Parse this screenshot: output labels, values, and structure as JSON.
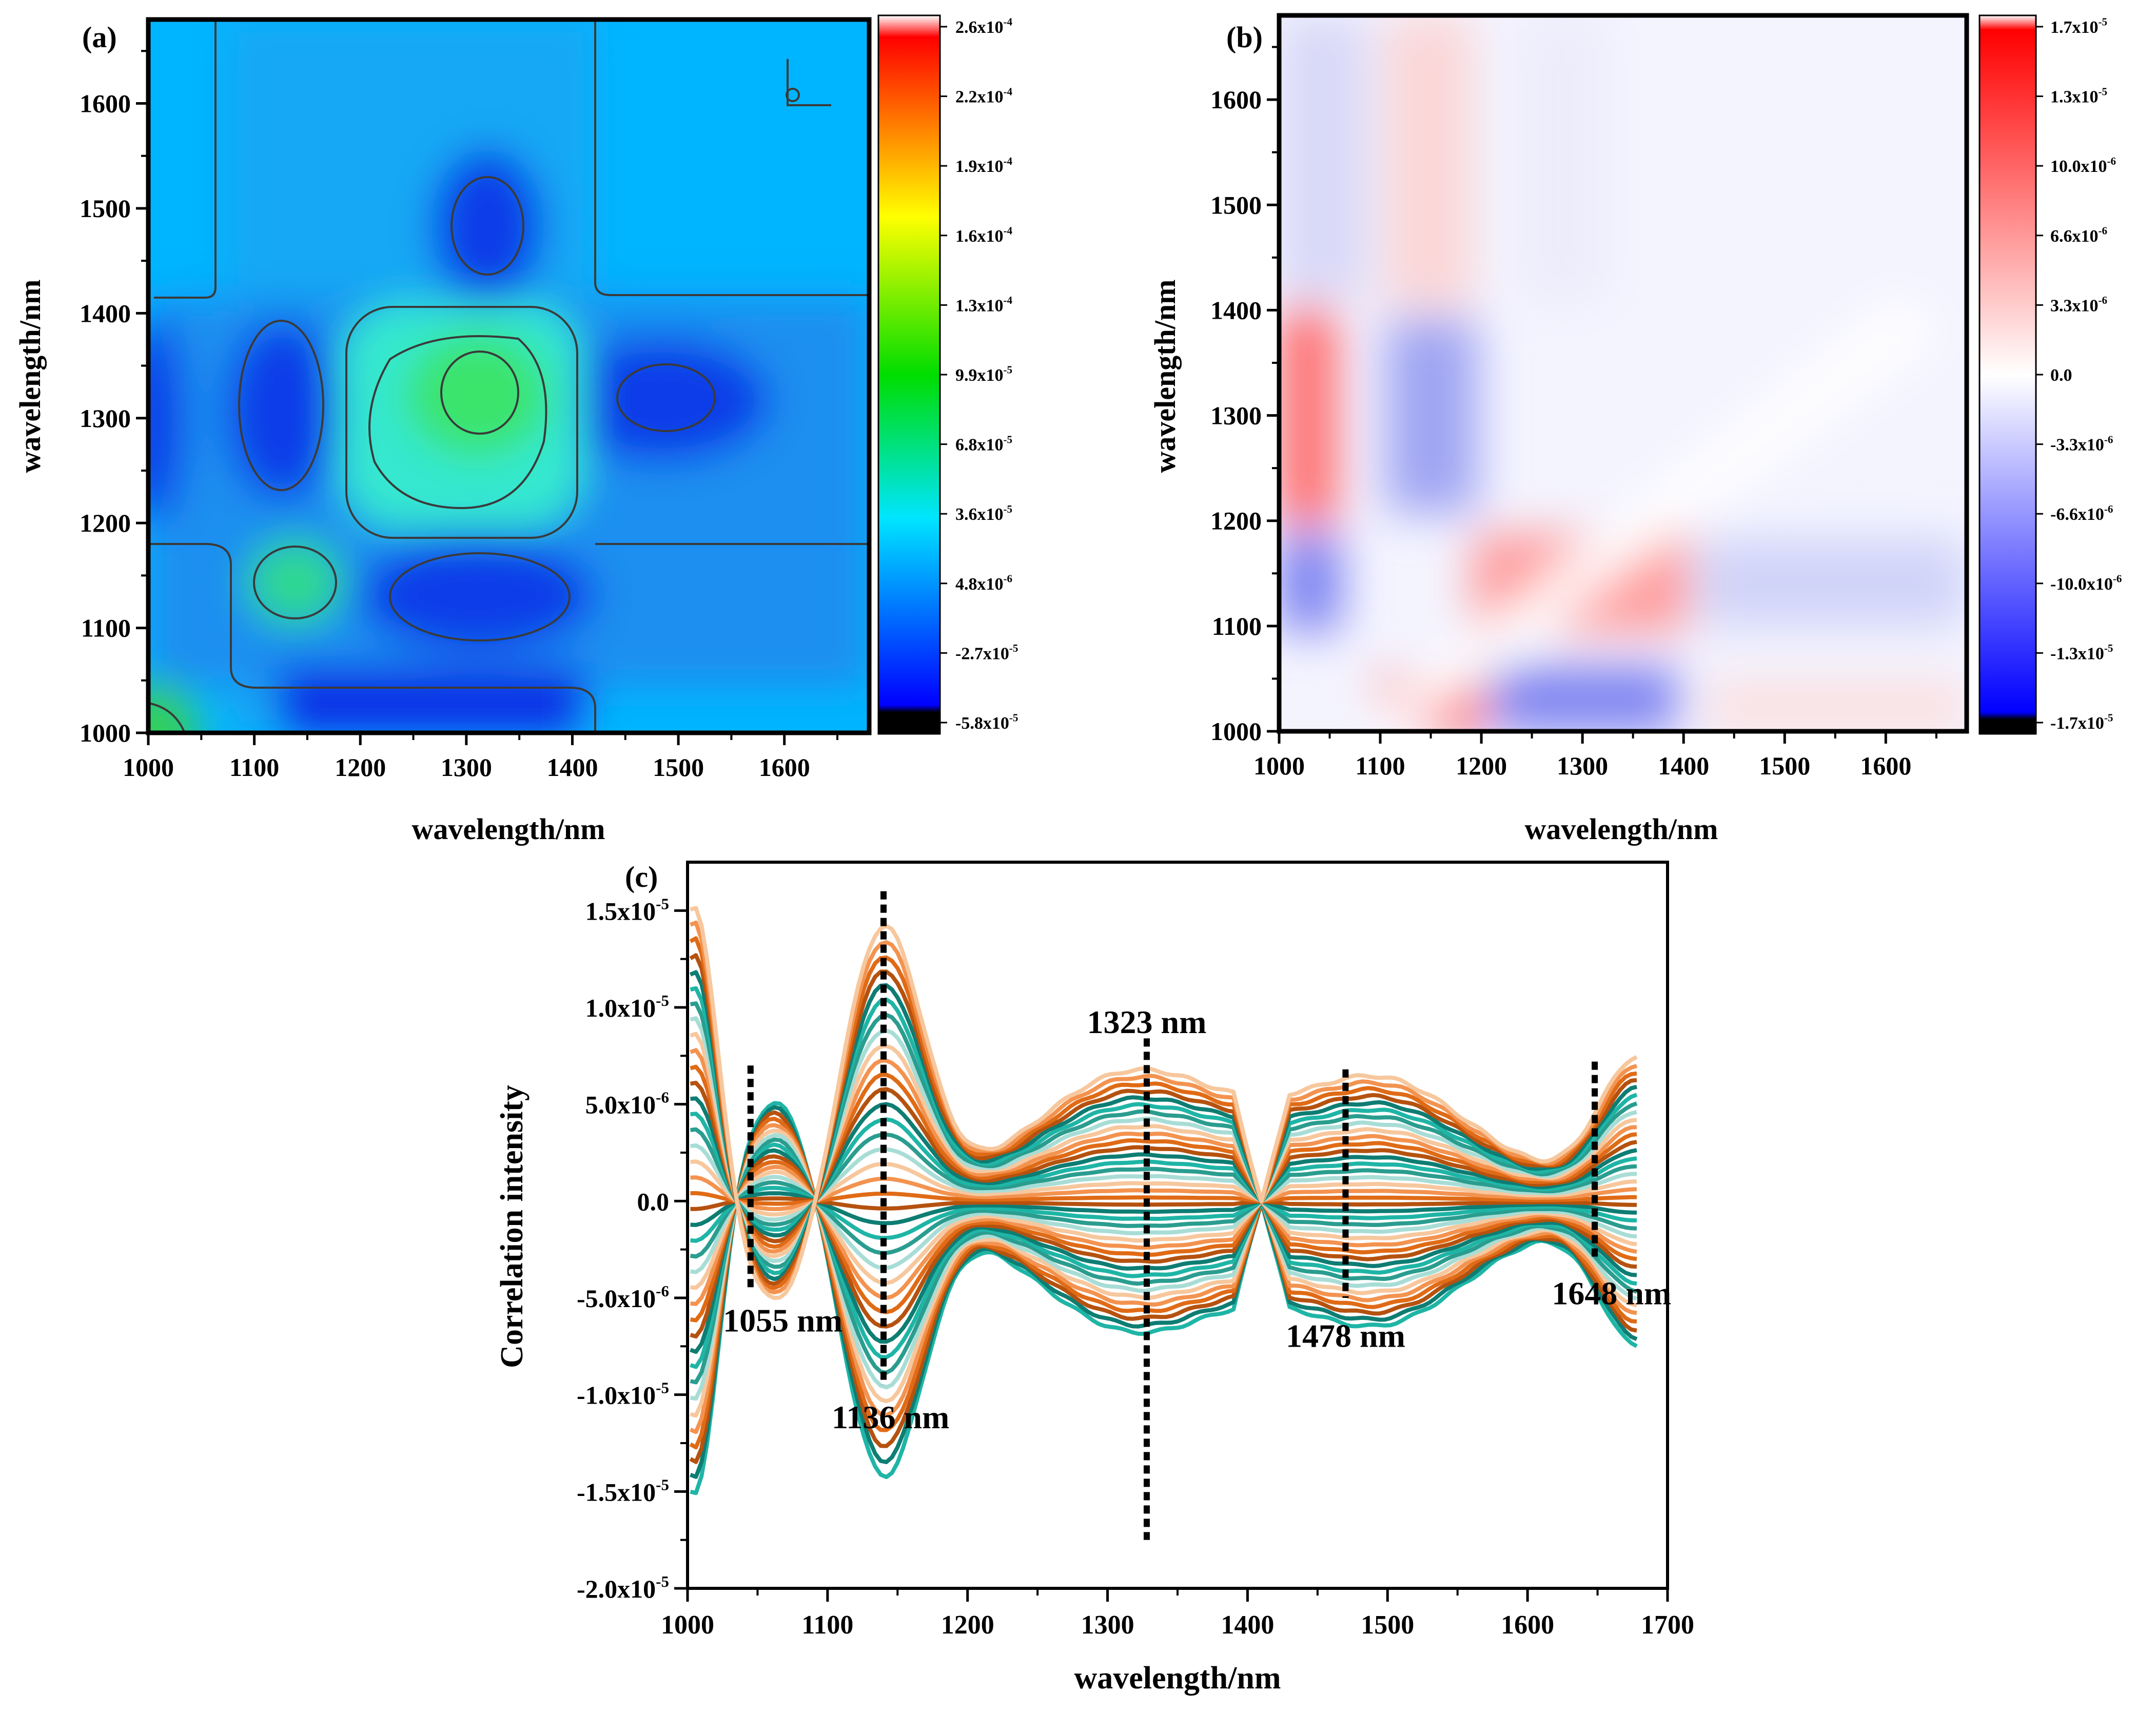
{
  "chart_data": [
    {
      "panel": "(a)",
      "type": "heatmap",
      "xlabel": "wavelength/nm",
      "ylabel": "wavelength/nm",
      "xlim": [
        1000,
        1680
      ],
      "ylim": [
        1000,
        1680
      ],
      "xticks": [
        "1000",
        "1100",
        "1200",
        "1300",
        "1400",
        "1500",
        "1600"
      ],
      "yticks": [
        "1000",
        "1100",
        "1200",
        "1300",
        "1400",
        "1500",
        "1600"
      ],
      "colorbar": {
        "labels": [
          {
            "mantissa": "2.6x10",
            "exp": "-4"
          },
          {
            "mantissa": "2.2x10",
            "exp": "-4"
          },
          {
            "mantissa": "1.9x10",
            "exp": "-4"
          },
          {
            "mantissa": "1.6x10",
            "exp": "-4"
          },
          {
            "mantissa": "1.3x10",
            "exp": "-4"
          },
          {
            "mantissa": "9.9x10",
            "exp": "-5"
          },
          {
            "mantissa": "6.8x10",
            "exp": "-5"
          },
          {
            "mantissa": "3.6x10",
            "exp": "-5"
          },
          {
            "mantissa": "4.8x10",
            "exp": "-6"
          },
          {
            "mantissa": "-2.7x10",
            "exp": "-5"
          },
          {
            "mantissa": "-5.8x10",
            "exp": "-5"
          }
        ],
        "colors": [
          "#ffffff",
          "#ff0000",
          "#ffff00",
          "#00dd00",
          "#00e5ff",
          "#0040ff",
          "#000000"
        ]
      },
      "features": [
        {
          "x": 1320,
          "y": 1320,
          "sign": "positive",
          "level": "high"
        },
        {
          "x": 1135,
          "y": 1135,
          "sign": "positive",
          "level": "medium"
        },
        {
          "x": 1010,
          "y": 1010,
          "sign": "positive",
          "level": "high"
        },
        {
          "x": 1320,
          "y": 1135,
          "sign": "negative"
        },
        {
          "x": 1135,
          "y": 1320,
          "sign": "negative"
        },
        {
          "x": 1480,
          "y": 1320,
          "sign": "negative"
        },
        {
          "x": 1330,
          "y": 1480,
          "sign": "negative"
        },
        {
          "x": 1320,
          "y": 1010,
          "sign": "negative"
        }
      ]
    },
    {
      "panel": "(b)",
      "type": "heatmap",
      "xlabel": "wavelength/nm",
      "ylabel": "wavelength/nm",
      "xlim": [
        1000,
        1680
      ],
      "ylim": [
        1000,
        1680
      ],
      "xticks": [
        "1000",
        "1100",
        "1200",
        "1300",
        "1400",
        "1500",
        "1600"
      ],
      "yticks": [
        "1000",
        "1100",
        "1200",
        "1300",
        "1400",
        "1500",
        "1600"
      ],
      "colorbar": {
        "labels": [
          {
            "mantissa": "1.7x10",
            "exp": "-5"
          },
          {
            "mantissa": "1.3x10",
            "exp": "-5"
          },
          {
            "mantissa": "10.0x10",
            "exp": "-6"
          },
          {
            "mantissa": "6.6x10",
            "exp": "-6"
          },
          {
            "mantissa": "3.3x10",
            "exp": "-6"
          },
          {
            "mantissa": "0.0",
            "exp": ""
          },
          {
            "mantissa": "-3.3x10",
            "exp": "-6"
          },
          {
            "mantissa": "-6.6x10",
            "exp": "-6"
          },
          {
            "mantissa": "-10.0x10",
            "exp": "-6"
          },
          {
            "mantissa": "-1.3x10",
            "exp": "-5"
          },
          {
            "mantissa": "-1.7x10",
            "exp": "-5"
          }
        ],
        "colors": [
          "#ffffff",
          "#ff0000",
          "#ffffff",
          "#0000ff",
          "#000000"
        ]
      },
      "features": [
        {
          "x": 1010,
          "y": 1320,
          "sign": "positive"
        },
        {
          "x": 1150,
          "y": 1010,
          "sign": "positive"
        },
        {
          "x": 1300,
          "y": 1140,
          "sign": "positive"
        },
        {
          "x": 1140,
          "y": 1300,
          "sign": "negative"
        },
        {
          "x": 1010,
          "y": 1140,
          "sign": "negative"
        },
        {
          "x": 1320,
          "y": 1010,
          "sign": "negative"
        },
        {
          "x": 1480,
          "y": 1140,
          "sign": "negative"
        }
      ]
    },
    {
      "panel": "(c)",
      "type": "line",
      "xlabel": "wavelength/nm",
      "ylabel": "Correlation intensity",
      "xlim": [
        1000,
        1700
      ],
      "ylim": [
        -2e-05,
        1.75e-05
      ],
      "xticks": [
        "1000",
        "1100",
        "1200",
        "1300",
        "1400",
        "1500",
        "1600",
        "1700"
      ],
      "yticks": [
        {
          "value": 1.5e-05,
          "mantissa": "1.5x10",
          "exp": "-5"
        },
        {
          "value": 1e-05,
          "mantissa": "1.0x10",
          "exp": "-5"
        },
        {
          "value": 5e-06,
          "mantissa": "5.0x10",
          "exp": "-6"
        },
        {
          "value": 0,
          "mantissa": "0.0",
          "exp": ""
        },
        {
          "value": -5e-06,
          "mantissa": "-5.0x10",
          "exp": "-6"
        },
        {
          "value": -1e-05,
          "mantissa": "-1.0x10",
          "exp": "-5"
        },
        {
          "value": -1.5e-05,
          "mantissa": "-1.5x10",
          "exp": "-5"
        },
        {
          "value": -2e-05,
          "mantissa": "-2.0x10",
          "exp": "-5"
        }
      ],
      "series_count": 38,
      "colors": [
        "#1fb5a6",
        "#0e7d73",
        "#b5520f",
        "#e06b16",
        "#f39350",
        "#f7c79d",
        "#a8ddd6",
        "#2a9d8f"
      ],
      "peak_lines": [
        {
          "x": 1045,
          "y_top": 7e-06,
          "y_bottom": -4.7e-06,
          "label": "1055 nm",
          "label_x": 1068,
          "label_y": -6.2e-06
        },
        {
          "x": 1140,
          "y_top": 1.6e-05,
          "y_bottom": -9.5e-06,
          "label": "1136 nm",
          "label_x": 1145,
          "label_y": -1.12e-05
        },
        {
          "x": 1328,
          "y_top": 8.4e-06,
          "y_bottom": -1.75e-05,
          "label": "1323 nm",
          "label_x": 1328,
          "label_y": 9.2e-06
        },
        {
          "x": 1470,
          "y_top": 6.8e-06,
          "y_bottom": -5e-06,
          "label": "1478 nm",
          "label_x": 1470,
          "label_y": -7e-06
        },
        {
          "x": 1648,
          "y_top": 7.2e-06,
          "y_bottom": -3e-06,
          "label": "1648 nm",
          "label_x": 1660,
          "label_y": -4.8e-06
        }
      ]
    }
  ]
}
